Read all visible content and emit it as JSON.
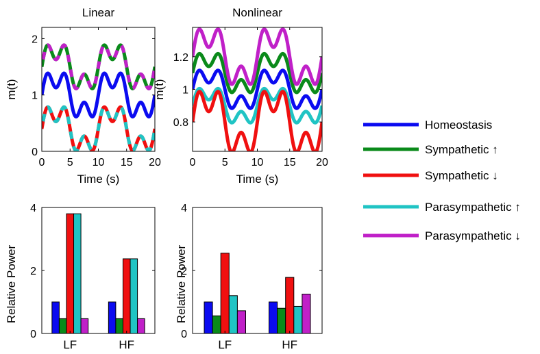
{
  "colors": {
    "homeostasis": "#0b0bf0",
    "symp_up": "#0a8a1a",
    "symp_down": "#f01010",
    "para_up": "#20c4c4",
    "para_down": "#c020c8"
  },
  "legend": {
    "items": [
      {
        "label": "Homeostasis",
        "color_key": "homeostasis"
      },
      {
        "label": "Sympathetic ↑",
        "color_key": "symp_up"
      },
      {
        "label": "Sympathetic ↓",
        "color_key": "symp_down"
      },
      {
        "label": "Parasympathetic ↑",
        "color_key": "para_up"
      },
      {
        "label": "Parasympathetic ↓",
        "color_key": "para_down"
      }
    ]
  },
  "chart_data": [
    {
      "id": "linear-time",
      "type": "line",
      "title": "Linear",
      "xlabel": "Time (s)",
      "ylabel": "m(t)",
      "xlim": [
        0,
        20
      ],
      "ylim": [
        0,
        2.2
      ],
      "xticks": [
        0,
        5,
        10,
        15,
        20
      ],
      "yticks": [
        0,
        1,
        2
      ],
      "signal_basis": {
        "y0": 1.0,
        "a1": 0.33,
        "f1": 0.1,
        "a2": 0.2,
        "f2": 0.3
      },
      "series": [
        {
          "color_key": "homeostasis",
          "offset": 0,
          "gain": 1
        },
        {
          "color_key": "symp_up",
          "offset": 0.5,
          "gain": 1,
          "dash_color_key": "para_down"
        },
        {
          "color_key": "symp_down",
          "offset": -0.6,
          "gain": 1,
          "dash_color_key": "para_up"
        }
      ]
    },
    {
      "id": "nonlinear-time",
      "type": "line",
      "title": "Nonlinear",
      "xlabel": "Time (s)",
      "ylabel": "m(t)",
      "xlim": [
        0,
        20
      ],
      "ylim": [
        0.62,
        1.38
      ],
      "xticks": [
        0,
        5,
        10,
        15,
        20
      ],
      "yticks": [
        0.8,
        1,
        1.2
      ],
      "signal_basis": {
        "y0": 1.0,
        "a1": 0.1,
        "f1": 0.1,
        "a2": 0.06,
        "f2": 0.3
      },
      "series": [
        {
          "color_key": "homeostasis",
          "offset": 0,
          "gain": 1
        },
        {
          "color_key": "symp_up",
          "offset": 0.1,
          "gain": 1.02
        },
        {
          "color_key": "para_down",
          "offset": 0.2,
          "gain": 1.45
        },
        {
          "color_key": "para_up",
          "offset": -0.1,
          "gain": 0.9
        },
        {
          "color_key": "symp_down",
          "offset": -0.2,
          "gain": 1.6
        }
      ]
    },
    {
      "id": "linear-power",
      "type": "bar",
      "ylabel": "Relative Power",
      "categories": [
        "LF",
        "HF"
      ],
      "ylim": [
        0,
        4
      ],
      "yticks": [
        0,
        2,
        4
      ],
      "series": [
        {
          "color_key": "homeostasis",
          "values": [
            1.0,
            1.0
          ]
        },
        {
          "color_key": "symp_up",
          "values": [
            0.47,
            0.47
          ]
        },
        {
          "color_key": "symp_down",
          "values": [
            3.8,
            2.37
          ]
        },
        {
          "color_key": "para_up",
          "values": [
            3.8,
            2.37
          ]
        },
        {
          "color_key": "para_down",
          "values": [
            0.47,
            0.47
          ]
        }
      ]
    },
    {
      "id": "nonlinear-power",
      "type": "bar",
      "ylabel": "Relative Power",
      "categories": [
        "LF",
        "HF"
      ],
      "ylim": [
        0,
        4
      ],
      "yticks": [
        0,
        2,
        4
      ],
      "series": [
        {
          "color_key": "homeostasis",
          "values": [
            1.0,
            1.0
          ]
        },
        {
          "color_key": "symp_up",
          "values": [
            0.56,
            0.8
          ]
        },
        {
          "color_key": "symp_down",
          "values": [
            2.55,
            1.78
          ]
        },
        {
          "color_key": "para_up",
          "values": [
            1.2,
            0.86
          ]
        },
        {
          "color_key": "para_down",
          "values": [
            0.72,
            1.25
          ]
        }
      ]
    }
  ]
}
